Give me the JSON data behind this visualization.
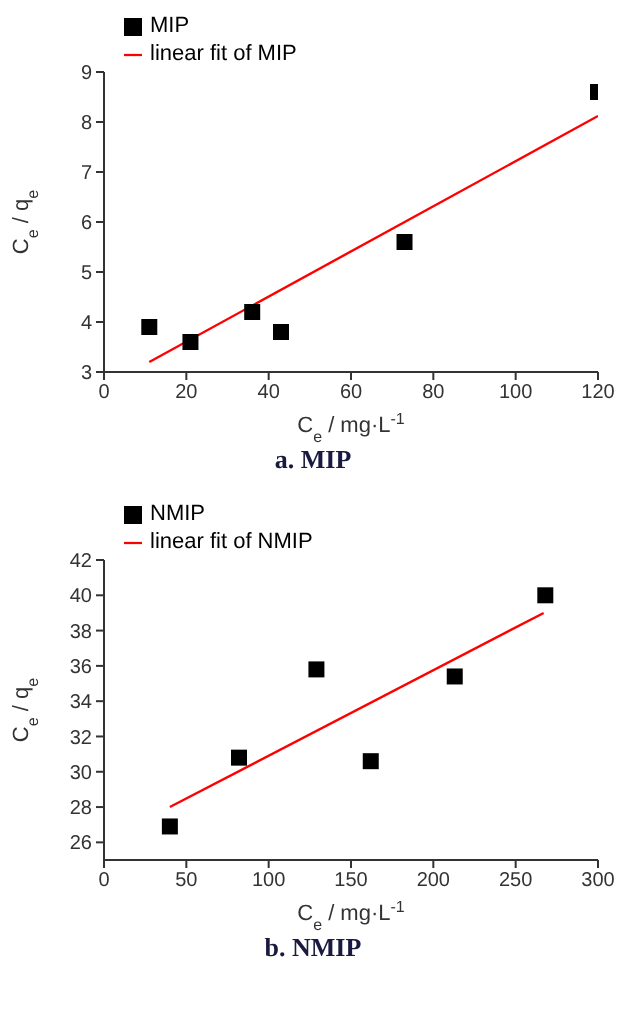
{
  "chart_data": [
    {
      "type": "scatter",
      "title": "a.  MIP",
      "xlabel": "C$_{e}$ / mg·L$^{-1}$",
      "ylabel": "C$_{e}$ / q$_{e}$",
      "xlim": [
        0,
        120
      ],
      "xticks": [
        0,
        20,
        40,
        60,
        80,
        100,
        120
      ],
      "ylim": [
        3,
        9
      ],
      "yticks": [
        3,
        4,
        5,
        6,
        7,
        8,
        9
      ],
      "legend": "top left",
      "grid": false,
      "series": [
        {
          "name": "MIP",
          "type": "scatter",
          "marker": "square",
          "color": "#000000",
          "x": [
            11,
            21,
            36,
            43,
            73,
            120
          ],
          "values": [
            3.9,
            3.6,
            4.2,
            3.8,
            5.6,
            8.6
          ]
        },
        {
          "name": "linear fit of MIP",
          "type": "line",
          "marker": "none",
          "color": "#ff0000",
          "x": [
            11,
            120
          ],
          "values": [
            3.2,
            8.12
          ]
        }
      ]
    },
    {
      "type": "scatter",
      "title": "b.  NMIP",
      "xlabel": "C$_{e}$ / mg·L$^{-1}$",
      "ylabel": "C$_{e}$ / q$_{e}$",
      "xlim": [
        0,
        300
      ],
      "xticks": [
        0,
        50,
        100,
        150,
        200,
        250,
        300
      ],
      "ylim": [
        25,
        42
      ],
      "yticks": [
        26,
        28,
        30,
        32,
        34,
        36,
        38,
        40,
        42
      ],
      "legend": "top left",
      "grid": false,
      "series": [
        {
          "name": "NMIP",
          "type": "scatter",
          "marker": "square",
          "color": "#000000",
          "x": [
            40,
            82,
            129,
            162,
            213,
            268
          ],
          "values": [
            26.9,
            30.8,
            35.8,
            30.6,
            35.4,
            40.0
          ]
        },
        {
          "name": "linear fit of NMIP",
          "type": "line",
          "marker": "none",
          "color": "#ff0000",
          "x": [
            40,
            267
          ],
          "values": [
            28.0,
            39.0
          ]
        }
      ]
    }
  ]
}
